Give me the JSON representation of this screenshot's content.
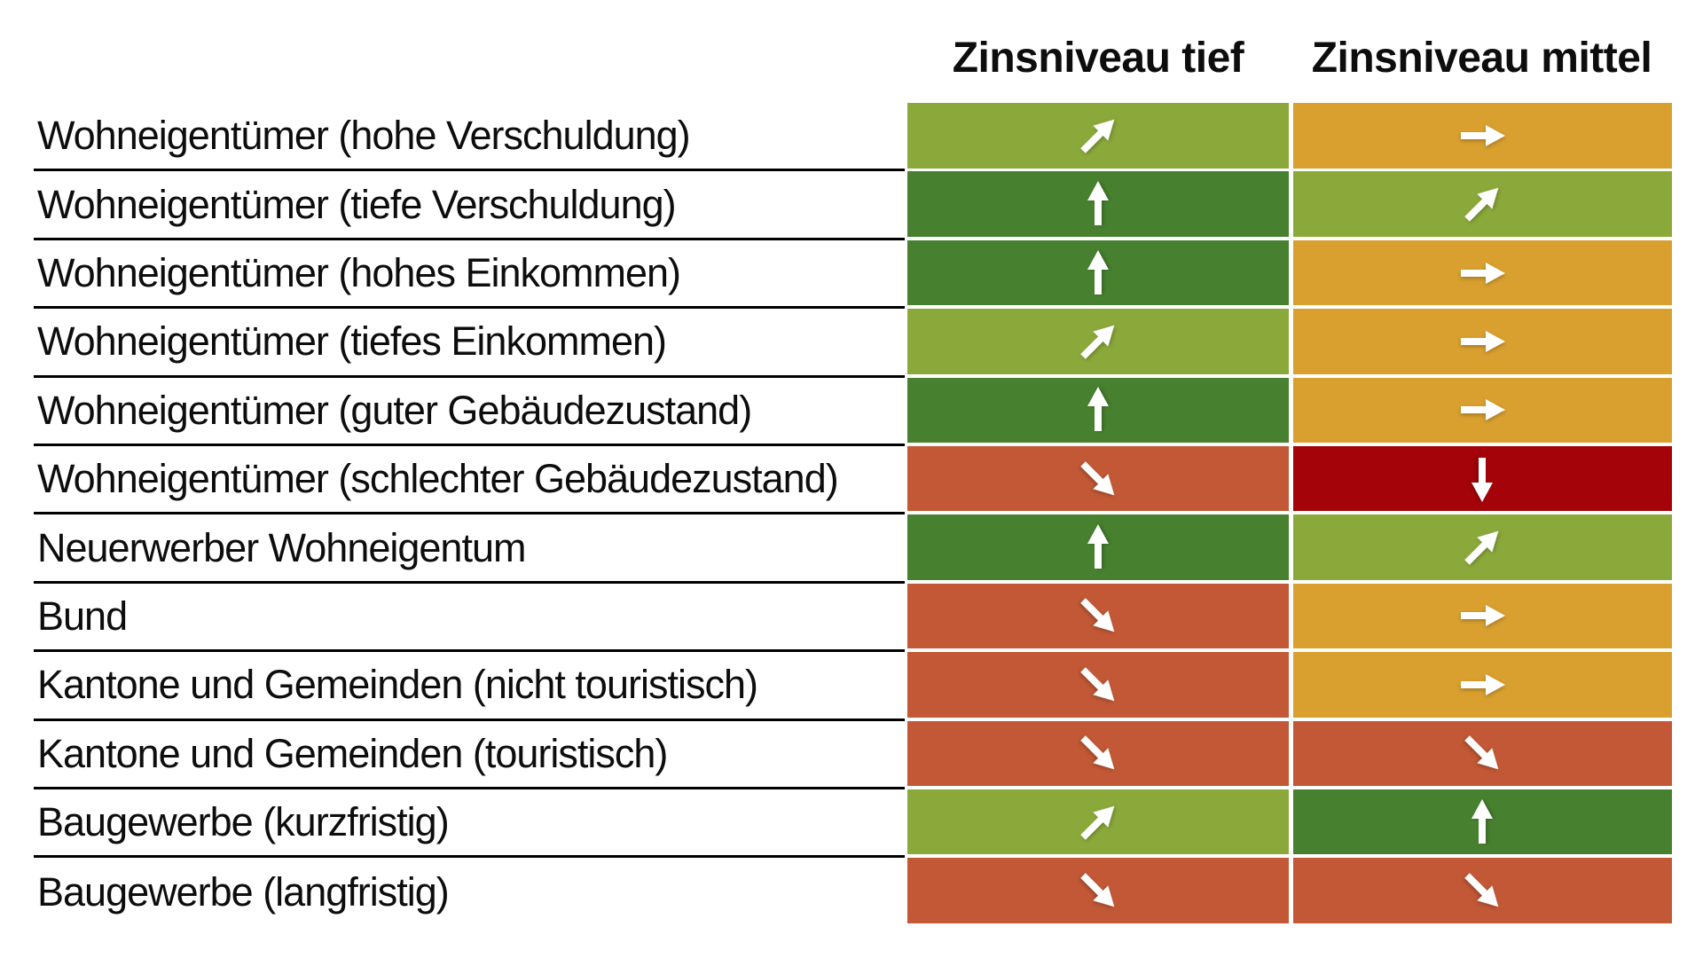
{
  "header": {
    "columns": [
      "Zinsniveau tief",
      "Zinsniveau mittel"
    ]
  },
  "palette": {
    "dark_green": "#47812F",
    "light_green": "#8BA93A",
    "orange": "#D9A02F",
    "terracotta": "#C25835",
    "dark_red": "#A30309"
  },
  "chart_data": {
    "type": "heatmap",
    "columns": [
      "Zinsniveau tief",
      "Zinsniveau mittel"
    ],
    "legend": "arrow = trend direction, cell color = assessment (dark green = very positive, light green = positive, orange = neutral/mixed, terracotta = negative, dark red = very negative)",
    "rows": [
      {
        "label": "Wohneigentümer (hohe Verschuldung)",
        "cells": [
          {
            "trend": "up-right",
            "color": "light_green"
          },
          {
            "trend": "right",
            "color": "orange"
          }
        ]
      },
      {
        "label": "Wohneigentümer (tiefe Verschuldung)",
        "cells": [
          {
            "trend": "up",
            "color": "dark_green"
          },
          {
            "trend": "up-right",
            "color": "light_green"
          }
        ]
      },
      {
        "label": "Wohneigentümer (hohes Einkommen)",
        "cells": [
          {
            "trend": "up",
            "color": "dark_green"
          },
          {
            "trend": "right",
            "color": "orange"
          }
        ]
      },
      {
        "label": "Wohneigentümer (tiefes Einkommen)",
        "cells": [
          {
            "trend": "up-right",
            "color": "light_green"
          },
          {
            "trend": "right",
            "color": "orange"
          }
        ]
      },
      {
        "label": "Wohneigentümer (guter Gebäudezustand)",
        "cells": [
          {
            "trend": "up",
            "color": "dark_green"
          },
          {
            "trend": "right",
            "color": "orange"
          }
        ]
      },
      {
        "label": "Wohneigentümer (schlechter Gebäudezustand)",
        "cells": [
          {
            "trend": "down-right",
            "color": "terracotta"
          },
          {
            "trend": "down",
            "color": "dark_red"
          }
        ]
      },
      {
        "label": "Neuerwerber Wohneigentum",
        "cells": [
          {
            "trend": "up",
            "color": "dark_green"
          },
          {
            "trend": "up-right",
            "color": "light_green"
          }
        ]
      },
      {
        "label": "Bund",
        "cells": [
          {
            "trend": "down-right",
            "color": "terracotta"
          },
          {
            "trend": "right",
            "color": "orange"
          }
        ]
      },
      {
        "label": "Kantone und Gemeinden (nicht touristisch)",
        "cells": [
          {
            "trend": "down-right",
            "color": "terracotta"
          },
          {
            "trend": "right",
            "color": "orange"
          }
        ]
      },
      {
        "label": "Kantone und Gemeinden (touristisch)",
        "cells": [
          {
            "trend": "down-right",
            "color": "terracotta"
          },
          {
            "trend": "down-right",
            "color": "terracotta"
          }
        ]
      },
      {
        "label": "Baugewerbe (kurzfristig)",
        "cells": [
          {
            "trend": "up-right",
            "color": "light_green"
          },
          {
            "trend": "up",
            "color": "dark_green"
          }
        ]
      },
      {
        "label": "Baugewerbe (langfristig)",
        "cells": [
          {
            "trend": "down-right",
            "color": "terracotta"
          },
          {
            "trend": "down-right",
            "color": "terracotta"
          }
        ]
      }
    ]
  }
}
